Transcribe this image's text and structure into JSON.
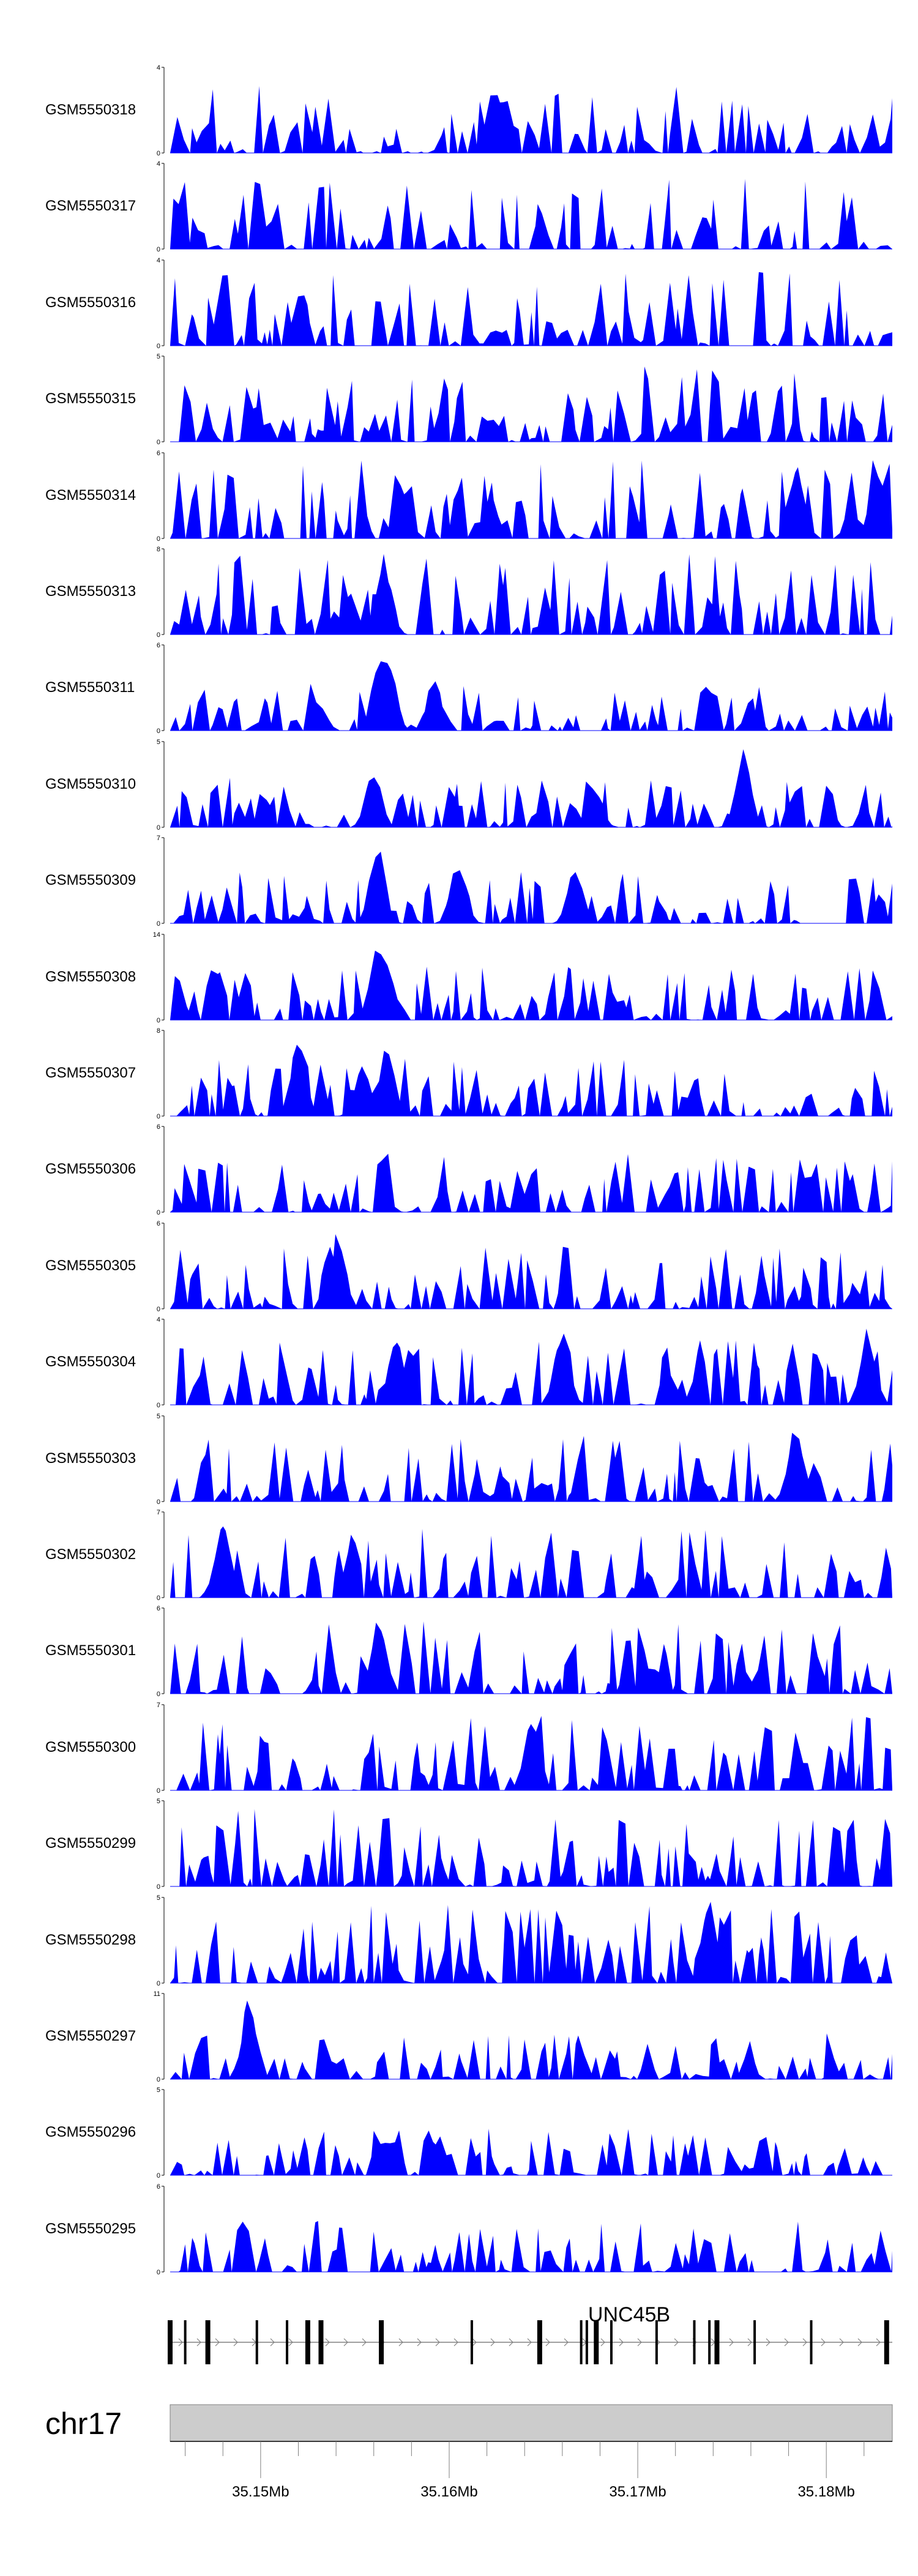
{
  "chart_data": {
    "type": "area",
    "title": "",
    "xlabel": "",
    "ylabel": "",
    "axis_color": "#808080",
    "series_color": "#0000ff",
    "xlim": [
      35.1452,
      35.1835
    ],
    "x_ticks_minor_step": 0.002,
    "x_tick_labels": [
      {
        "value": 35.15,
        "label": "35.15Mb"
      },
      {
        "value": 35.16,
        "label": "35.16Mb"
      },
      {
        "value": 35.17,
        "label": "35.17Mb"
      },
      {
        "value": 35.18,
        "label": "35.18Mb"
      }
    ],
    "tracks": [
      {
        "name": "GSM5550318",
        "ymax": 4,
        "ymin": 0
      },
      {
        "name": "GSM5550317",
        "ymax": 4,
        "ymin": 0
      },
      {
        "name": "GSM5550316",
        "ymax": 4,
        "ymin": 0
      },
      {
        "name": "GSM5550315",
        "ymax": 5,
        "ymin": 0
      },
      {
        "name": "GSM5550314",
        "ymax": 6,
        "ymin": 0
      },
      {
        "name": "GSM5550313",
        "ymax": 8,
        "ymin": 0
      },
      {
        "name": "GSM5550311",
        "ymax": 6,
        "ymin": 0
      },
      {
        "name": "GSM5550310",
        "ymax": 5,
        "ymin": 0
      },
      {
        "name": "GSM5550309",
        "ymax": 7,
        "ymin": 0
      },
      {
        "name": "GSM5550308",
        "ymax": 14,
        "ymin": 0
      },
      {
        "name": "GSM5550307",
        "ymax": 8,
        "ymin": 0
      },
      {
        "name": "GSM5550306",
        "ymax": 6,
        "ymin": 0
      },
      {
        "name": "GSM5550305",
        "ymax": 6,
        "ymin": 0
      },
      {
        "name": "GSM5550304",
        "ymax": 4,
        "ymin": 0
      },
      {
        "name": "GSM5550303",
        "ymax": 5,
        "ymin": 0
      },
      {
        "name": "GSM5550302",
        "ymax": 7,
        "ymin": 0
      },
      {
        "name": "GSM5550301",
        "ymax": 6,
        "ymin": 0
      },
      {
        "name": "GSM5550300",
        "ymax": 7,
        "ymin": 0
      },
      {
        "name": "GSM5550299",
        "ymax": 5,
        "ymin": 0
      },
      {
        "name": "GSM5550298",
        "ymax": 5,
        "ymin": 0
      },
      {
        "name": "GSM5550297",
        "ymax": 11,
        "ymin": 0
      },
      {
        "name": "GSM5550296",
        "ymax": 5,
        "ymin": 0
      },
      {
        "name": "GSM5550295",
        "ymax": 6,
        "ymin": 0
      }
    ],
    "peaks": {
      "GSM5550314": [
        {
          "x": 35.1575,
          "h": 0.7
        },
        {
          "x": 35.1622,
          "h": 0.55
        },
        {
          "x": 35.1785,
          "h": 0.9
        },
        {
          "x": 35.1827,
          "h": 0.9
        }
      ],
      "GSM5550313": [
        {
          "x": 35.1547,
          "h": 0.6
        },
        {
          "x": 35.1565,
          "h": 1.0
        }
      ],
      "GSM5550311": [
        {
          "x": 35.1563,
          "h": 1.0
        },
        {
          "x": 35.1568,
          "h": 0.85
        },
        {
          "x": 35.1592,
          "h": 0.65
        }
      ],
      "GSM5550310": [
        {
          "x": 35.156,
          "h": 0.75
        },
        {
          "x": 35.1677,
          "h": 0.55
        },
        {
          "x": 35.1756,
          "h": 0.95
        }
      ],
      "GSM5550309": [
        {
          "x": 35.1562,
          "h": 1.0
        },
        {
          "x": 35.1605,
          "h": 0.75
        },
        {
          "x": 35.1667,
          "h": 0.7
        }
      ],
      "GSM5550308": [
        {
          "x": 35.1562,
          "h": 1.0
        },
        {
          "x": 35.1567,
          "h": 0.8
        }
      ],
      "GSM5550307": [
        {
          "x": 35.152,
          "h": 1.0
        },
        {
          "x": 35.1567,
          "h": 0.85
        },
        {
          "x": 35.1554,
          "h": 0.7
        }
      ],
      "GSM5550305": [
        {
          "x": 35.1541,
          "h": 1.0
        }
      ],
      "GSM5550304": [
        {
          "x": 35.1572,
          "h": 0.95
        },
        {
          "x": 35.166,
          "h": 0.95
        },
        {
          "x": 35.1822,
          "h": 0.95
        }
      ],
      "GSM5550303": [
        {
          "x": 35.1784,
          "h": 1.0
        }
      ],
      "GSM5550302": [
        {
          "x": 35.148,
          "h": 1.0
        }
      ],
      "GSM5550301": [
        {
          "x": 35.1563,
          "h": 1.0
        }
      ],
      "GSM5550300": [
        {
          "x": 35.1644,
          "h": 1.0
        }
      ],
      "GSM5550298": [
        {
          "x": 35.1738,
          "h": 1.0
        }
      ],
      "GSM5550297": [
        {
          "x": 35.1494,
          "h": 1.0
        }
      ]
    },
    "gene": {
      "name": "UNC45B",
      "strand": "+",
      "start": 35.1452,
      "end": 35.1835,
      "exons": [
        35.1452,
        35.146,
        35.1472,
        35.1498,
        35.1514,
        35.1525,
        35.1532,
        35.1564,
        35.1612,
        35.1648,
        35.167,
        35.1673,
        35.1678,
        35.1686,
        35.171,
        35.173,
        35.1738,
        35.1742,
        35.1762,
        35.1792,
        35.1832
      ],
      "exon_widths": [
        2,
        1,
        2,
        1,
        1,
        2,
        2,
        2,
        1,
        2,
        1,
        1,
        2,
        1,
        1,
        1,
        1,
        2,
        1,
        1,
        2
      ]
    },
    "chromosome": "chr17"
  }
}
